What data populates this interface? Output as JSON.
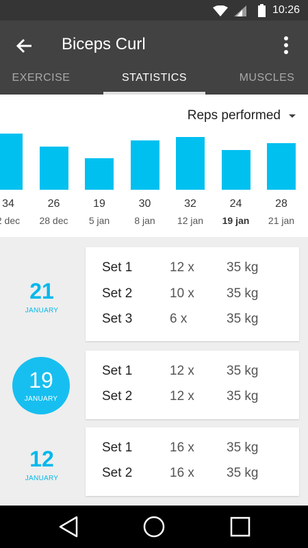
{
  "status_bar": {
    "time": "10:26"
  },
  "app_bar": {
    "title": "Biceps Curl"
  },
  "tabs": [
    {
      "label": "EXERCISE",
      "active": false
    },
    {
      "label": "STATISTICS",
      "active": true
    },
    {
      "label": "MUSCLES",
      "active": false
    }
  ],
  "chart_panel": {
    "metric_label": "Reps performed",
    "chart_data": {
      "type": "bar",
      "categories": [
        "2 dec",
        "28 dec",
        "5 jan",
        "8 jan",
        "12 jan",
        "19 jan",
        "21 jan"
      ],
      "values": [
        34,
        26,
        19,
        30,
        32,
        24,
        28
      ],
      "value_labels": [
        "34",
        "26",
        "19",
        "30",
        "32",
        "24",
        "28"
      ],
      "highlighted_category": "19 jan",
      "color": "#00c0f0"
    }
  },
  "days": [
    {
      "day": "21",
      "month": "JANUARY",
      "selected": false,
      "sets": [
        {
          "label": "Set 1",
          "reps": "12 x",
          "weight": "35 kg"
        },
        {
          "label": "Set 2",
          "reps": "10 x",
          "weight": "35 kg"
        },
        {
          "label": "Set 3",
          "reps": "6 x",
          "weight": "35 kg"
        }
      ]
    },
    {
      "day": "19",
      "month": "JANUARY",
      "selected": true,
      "sets": [
        {
          "label": "Set 1",
          "reps": "12 x",
          "weight": "35 kg"
        },
        {
          "label": "Set 2",
          "reps": "12 x",
          "weight": "35 kg"
        }
      ]
    },
    {
      "day": "12",
      "month": "JANUARY",
      "selected": false,
      "sets": [
        {
          "label": "Set 1",
          "reps": "16 x",
          "weight": "35 kg"
        },
        {
          "label": "Set 2",
          "reps": "16 x",
          "weight": "35 kg"
        }
      ]
    }
  ],
  "colors": {
    "accent": "#00c0f0",
    "app_bar": "#424242",
    "status_bar": "#353535"
  }
}
